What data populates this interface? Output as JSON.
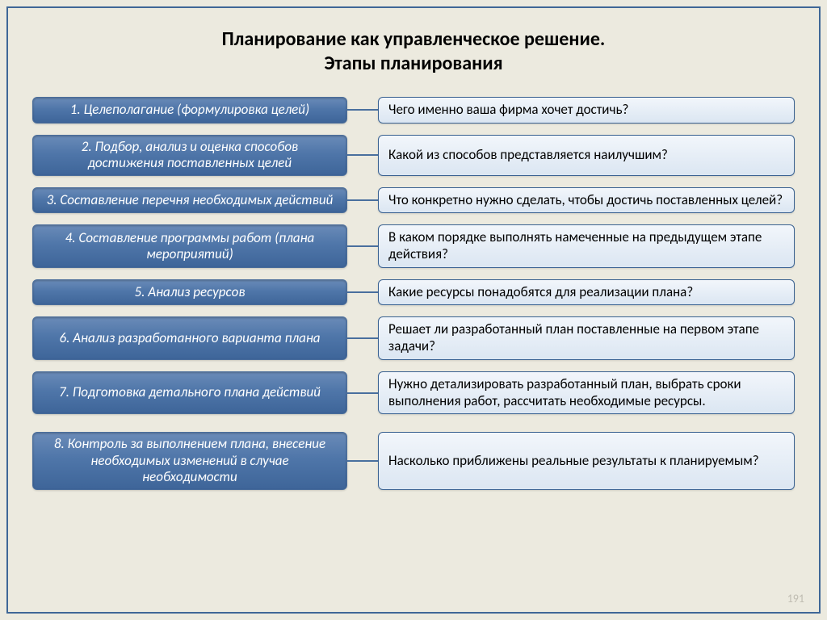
{
  "background_color": "#eceadf",
  "frame_border_color": "#3f6797",
  "title_line1": "Планирование как управленческое решение.",
  "title_line2": "Этапы планирования",
  "title_fontsize": 24,
  "left_fontsize": 17,
  "right_fontsize": 17,
  "left_style": {
    "fill_gradient": [
      "#6a8bb8",
      "#4f76a9",
      "#3e6599"
    ],
    "border": "#4b6e9b",
    "radius": 6,
    "text_color": "#ffffff",
    "italic": true
  },
  "right_style": {
    "fill_gradient": [
      "#f2f6fb",
      "#dbe6f2"
    ],
    "border": "#396191",
    "radius": 6,
    "text_color": "#000000"
  },
  "connector_color": "#496f9e",
  "rows": [
    {
      "left": "1. Целеполагание (формулировка целей)",
      "right": "Чего именно  ваша фирма  хочет  достичь?",
      "extra_gap": false
    },
    {
      "left": "2. Подбор, анализ и оценка способов достижения поставленных целей",
      "right": "Какой из способов представляется наилучшим?",
      "extra_gap": false
    },
    {
      "left": "3. Составление перечня необходимых действий",
      "right": "Что конкретно нужно сделать, чтобы достичь поставленных целей?",
      "extra_gap": false
    },
    {
      "left": "4. Составление программы работ (плана мероприятий)",
      "right": "В каком порядке выполнять намеченные на предыдущем этапе действия?",
      "extra_gap": false
    },
    {
      "left": "5. Анализ ресурсов",
      "right": "Какие ресурсы понадобятся для реализации плана?",
      "extra_gap": false
    },
    {
      "left": "6. Анализ разработанного варианта плана",
      "right": "Решает ли разработанный план поставленные на первом этапе задачи?",
      "extra_gap": false
    },
    {
      "left": "7. Подготовка детального плана действий",
      "right": "Нужно детализировать разработанный план, выбрать сроки выполнения работ, рассчитать необходимые ресурсы.",
      "extra_gap": false
    },
    {
      "left": "8. Контроль за выполнением плана, внесение необходимых изменений в случае необходимости",
      "right": "Насколько приближены реальные результаты к планируемым?",
      "extra_gap": true
    }
  ],
  "slide_number": "191",
  "slide_number_fontsize": 14,
  "slide_number_color": "#bfbcb1"
}
